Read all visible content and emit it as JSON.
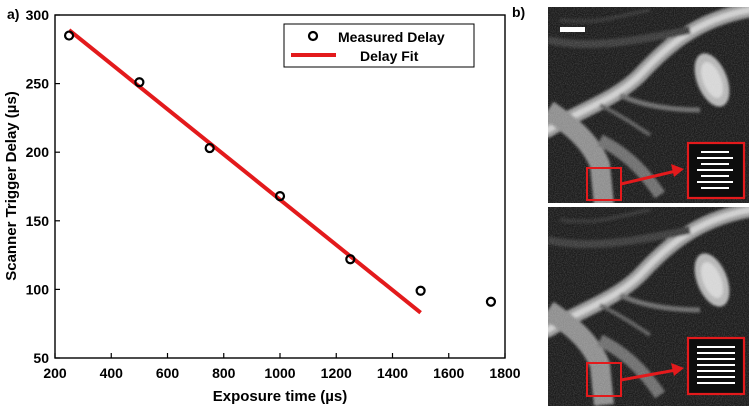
{
  "chart_data": {
    "type": "scatter",
    "panel_label": "a)",
    "xlabel": "Exposure time (µs)",
    "ylabel": "Scanner Trigger Delay (µs)",
    "xlim": [
      200,
      1800
    ],
    "ylim": [
      50,
      300
    ],
    "xticks": [
      200,
      400,
      600,
      800,
      1000,
      1200,
      1400,
      1600,
      1800
    ],
    "yticks": [
      50,
      100,
      150,
      200,
      250,
      300
    ],
    "legend_position": "top-right",
    "series": [
      {
        "name": "Measured Delay",
        "kind": "markers",
        "color": "#000000",
        "x": [
          250,
          500,
          750,
          1000,
          1250,
          1500,
          1750
        ],
        "y": [
          285,
          251,
          203,
          168,
          122,
          99,
          91
        ]
      },
      {
        "name": "Delay Fit",
        "kind": "line",
        "color": "#e31a1c",
        "x": [
          250,
          1500
        ],
        "y": [
          289,
          83
        ]
      }
    ]
  },
  "image_panel": {
    "panel_label": "b)"
  }
}
